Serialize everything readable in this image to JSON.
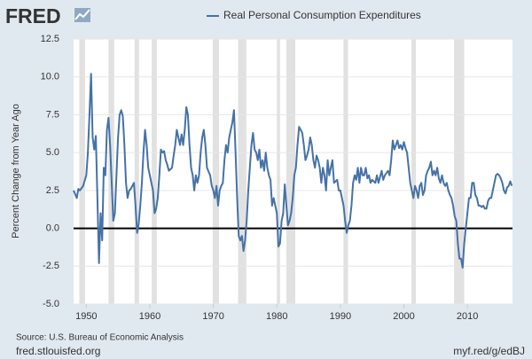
{
  "chart_data": {
    "type": "line",
    "logo": "FRED",
    "ylabel": "Percent Change from Year Ago",
    "source": "Source: U.S. Bureau of Economic Analysis",
    "site": "fred.stlouisfed.org",
    "short_link": "myf.red/g/edBJ",
    "xlim": [
      1948,
      2017.1
    ],
    "xticks": [
      1950,
      1960,
      1970,
      1980,
      1990,
      2000,
      2010
    ],
    "ylim": [
      -5,
      12.5
    ],
    "yticks": [
      {
        "value": -5,
        "label": "-5.0"
      },
      {
        "value": -2.5,
        "label": "-2.5"
      },
      {
        "value": 0,
        "label": "0.0"
      },
      {
        "value": 2.5,
        "label": "2.5"
      },
      {
        "value": 5,
        "label": "5.0"
      },
      {
        "value": 7.5,
        "label": "7.5"
      },
      {
        "value": 10,
        "label": "10.0"
      },
      {
        "value": 12.5,
        "label": "12.5"
      }
    ],
    "grid": true,
    "recession_color": "#e1e1e1",
    "recessions": [
      [
        1948.9,
        1949.8
      ],
      [
        1953.5,
        1954.4
      ],
      [
        1957.6,
        1958.3
      ],
      [
        1960.3,
        1961.1
      ],
      [
        1969.9,
        1970.9
      ],
      [
        1973.9,
        1975.2
      ],
      [
        1980.0,
        1980.5
      ],
      [
        1981.5,
        1982.9
      ],
      [
        1990.5,
        1991.2
      ],
      [
        2001.2,
        2001.9
      ],
      [
        2007.9,
        2009.5
      ]
    ],
    "x": [
      1948.0,
      1948.5,
      1948.75,
      1949.0,
      1949.5,
      1950.0,
      1950.25,
      1950.5,
      1950.75,
      1951.0,
      1951.25,
      1951.5,
      1951.75,
      1952.0,
      1952.25,
      1952.5,
      1952.75,
      1953.0,
      1953.25,
      1953.5,
      1953.75,
      1954.0,
      1954.25,
      1954.5,
      1954.75,
      1955.0,
      1955.25,
      1955.5,
      1955.75,
      1956.0,
      1956.25,
      1956.5,
      1956.75,
      1957.0,
      1957.5,
      1957.75,
      1958.0,
      1958.25,
      1958.5,
      1958.75,
      1959.0,
      1959.25,
      1959.5,
      1959.75,
      1960.0,
      1960.5,
      1960.75,
      1961.0,
      1961.25,
      1961.5,
      1961.75,
      1962.0,
      1962.25,
      1962.5,
      1962.75,
      1963.0,
      1963.5,
      1963.75,
      1964.0,
      1964.25,
      1964.5,
      1964.75,
      1965.0,
      1965.25,
      1965.5,
      1965.75,
      1966.0,
      1966.25,
      1966.5,
      1966.75,
      1967.0,
      1967.25,
      1967.5,
      1967.75,
      1968.0,
      1968.25,
      1968.5,
      1968.75,
      1969.0,
      1969.5,
      1969.75,
      1970.0,
      1970.25,
      1970.5,
      1970.75,
      1971.0,
      1971.25,
      1971.5,
      1971.75,
      1972.0,
      1972.25,
      1972.5,
      1972.75,
      1973.0,
      1973.25,
      1973.5,
      1973.75,
      1974.0,
      1974.25,
      1974.5,
      1974.75,
      1975.0,
      1975.25,
      1975.5,
      1975.75,
      1976.0,
      1976.25,
      1976.5,
      1976.75,
      1977.0,
      1977.25,
      1977.5,
      1977.75,
      1978.0,
      1978.25,
      1978.5,
      1978.75,
      1979.0,
      1979.25,
      1979.5,
      1979.75,
      1980.0,
      1980.25,
      1980.5,
      1980.75,
      1981.0,
      1981.25,
      1981.5,
      1981.75,
      1982.0,
      1982.25,
      1982.5,
      1982.75,
      1983.0,
      1983.25,
      1983.5,
      1983.75,
      1984.0,
      1984.25,
      1984.5,
      1984.75,
      1985.0,
      1985.25,
      1985.5,
      1985.75,
      1986.0,
      1986.25,
      1986.5,
      1986.75,
      1987.0,
      1987.25,
      1987.5,
      1987.75,
      1988.0,
      1988.25,
      1988.5,
      1988.75,
      1989.0,
      1989.5,
      1989.75,
      1990.0,
      1990.25,
      1990.5,
      1990.75,
      1991.0,
      1991.25,
      1991.5,
      1991.75,
      1992.0,
      1992.25,
      1992.5,
      1992.75,
      1993.0,
      1993.25,
      1993.5,
      1993.75,
      1994.0,
      1994.25,
      1994.5,
      1994.75,
      1995.0,
      1995.5,
      1995.75,
      1996.0,
      1996.5,
      1996.75,
      1997.0,
      1997.5,
      1997.75,
      1998.0,
      1998.25,
      1998.5,
      1998.75,
      1999.0,
      1999.25,
      1999.5,
      1999.75,
      2000.0,
      2000.25,
      2000.5,
      2000.75,
      2001.0,
      2001.25,
      2001.5,
      2001.75,
      2002.0,
      2002.25,
      2002.5,
      2002.75,
      2003.0,
      2003.25,
      2003.5,
      2003.75,
      2004.0,
      2004.25,
      2004.5,
      2004.75,
      2005.0,
      2005.25,
      2005.5,
      2005.75,
      2006.0,
      2006.25,
      2006.5,
      2006.75,
      2007.0,
      2007.25,
      2007.5,
      2007.75,
      2008.0,
      2008.25,
      2008.5,
      2008.75,
      2009.0,
      2009.25,
      2009.5,
      2009.75,
      2010.0,
      2010.25,
      2010.5,
      2010.75,
      2011.0,
      2011.25,
      2011.5,
      2011.75,
      2012.0,
      2012.25,
      2012.5,
      2012.75,
      2013.0,
      2013.25,
      2013.5,
      2013.75,
      2014.0,
      2014.25,
      2014.5,
      2014.75,
      2015.0,
      2015.25,
      2015.5,
      2015.75,
      2016.0,
      2016.25,
      2016.5,
      2016.75,
      2017.0
    ],
    "series": [
      {
        "name": "Real Personal Consumption Expenditures",
        "color": "#4572a7",
        "values": [
          2.5,
          2.0,
          2.6,
          2.5,
          2.8,
          3.5,
          5.0,
          7.5,
          10.2,
          6.0,
          5.2,
          6.1,
          2.0,
          -2.3,
          1.0,
          -0.8,
          4.0,
          3.5,
          6.5,
          7.3,
          5.5,
          3.0,
          0.5,
          1.0,
          3.5,
          6.0,
          7.5,
          7.8,
          7.4,
          5.5,
          3.0,
          2.0,
          2.5,
          2.6,
          3.0,
          1.5,
          -0.3,
          0.3,
          1.5,
          3.0,
          5.0,
          6.5,
          5.5,
          4.0,
          3.5,
          2.5,
          1.0,
          1.3,
          2.0,
          3.5,
          5.2,
          5.0,
          5.1,
          4.5,
          4.2,
          3.8,
          4.0,
          4.8,
          5.5,
          6.5,
          6.0,
          5.5,
          6.2,
          5.5,
          6.5,
          8.0,
          7.5,
          5.5,
          4.0,
          3.5,
          2.5,
          3.5,
          3.0,
          3.5,
          5.0,
          6.0,
          6.5,
          5.5,
          4.0,
          3.5,
          2.8,
          2.5,
          2.0,
          2.8,
          1.5,
          2.5,
          2.8,
          3.0,
          4.5,
          5.5,
          5.0,
          6.0,
          6.5,
          7.0,
          7.8,
          5.0,
          2.0,
          -0.5,
          -0.8,
          -0.5,
          -1.5,
          -0.8,
          0.5,
          2.5,
          4.0,
          5.5,
          6.3,
          5.2,
          5.0,
          4.5,
          5.2,
          4.0,
          4.5,
          3.8,
          5.0,
          4.0,
          3.5,
          3.2,
          1.5,
          2.0,
          1.5,
          1.0,
          -1.2,
          -1.0,
          0.5,
          1.0,
          2.9,
          1.5,
          0.2,
          0.5,
          1.0,
          2.0,
          3.5,
          4.0,
          5.5,
          6.7,
          6.5,
          6.3,
          5.5,
          4.5,
          4.8,
          5.2,
          6.0,
          5.5,
          4.5,
          4.0,
          4.8,
          4.5,
          4.0,
          3.0,
          4.0,
          3.5,
          2.5,
          4.5,
          3.5,
          4.0,
          4.5,
          3.0,
          3.2,
          2.5,
          2.5,
          2.0,
          1.5,
          0.5,
          -0.3,
          0.2,
          0.5,
          1.5,
          3.0,
          3.5,
          3.2,
          4.0,
          3.0,
          4.0,
          3.5,
          3.5,
          4.0,
          3.3,
          3.5,
          3.0,
          3.2,
          3.0,
          3.5,
          3.0,
          3.8,
          3.2,
          3.5,
          3.8,
          3.5,
          4.5,
          5.8,
          5.2,
          5.5,
          5.8,
          5.3,
          5.5,
          5.2,
          5.7,
          5.3,
          5.0,
          4.0,
          3.0,
          2.5,
          2.0,
          2.8,
          2.5,
          2.0,
          2.8,
          3.0,
          2.2,
          2.5,
          3.5,
          3.8,
          4.0,
          4.4,
          3.5,
          3.8,
          3.5,
          4.0,
          3.3,
          3.0,
          3.5,
          3.0,
          2.8,
          3.0,
          2.5,
          2.2,
          2.0,
          1.5,
          0.8,
          0.5,
          -1.0,
          -2.0,
          -2.0,
          -2.6,
          -1.0,
          0.0,
          1.0,
          2.0,
          2.0,
          3.0,
          3.0,
          2.2,
          2.0,
          1.5,
          1.5,
          1.4,
          1.5,
          1.3,
          1.3,
          1.8,
          2.0,
          2.0,
          2.5,
          3.0,
          3.5,
          3.6,
          3.5,
          3.3,
          3.0,
          2.5,
          2.3,
          2.7,
          2.8,
          3.1,
          2.8
        ]
      }
    ]
  }
}
